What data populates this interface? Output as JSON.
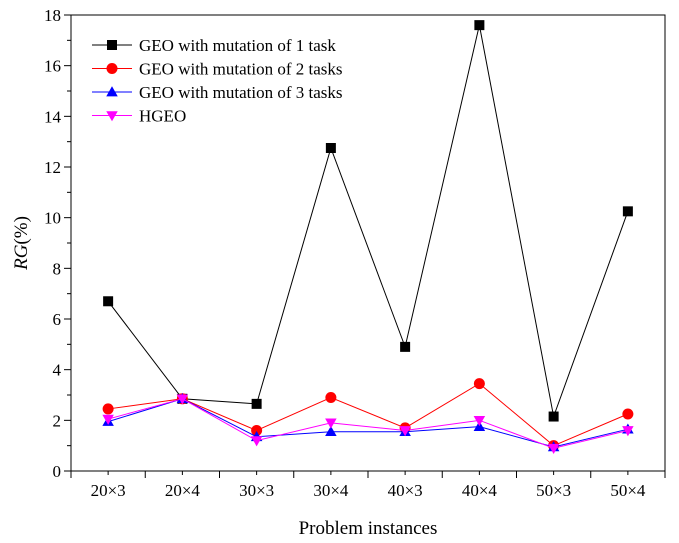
{
  "chart_data": {
    "type": "line",
    "title": "",
    "xlabel": "Problem instances",
    "ylabel_italic": "RG",
    "ylabel_rest": "(%)",
    "categories": [
      "20×3",
      "20×4",
      "30×3",
      "30×4",
      "40×3",
      "40×4",
      "50×3",
      "50×4"
    ],
    "ylim": [
      0,
      18
    ],
    "yticks": [
      0,
      2,
      4,
      6,
      8,
      10,
      12,
      14,
      16,
      18
    ],
    "grid": false,
    "legend_position": "top-left",
    "series": [
      {
        "name": "GEO with mutation of 1 task",
        "color": "#000000",
        "marker": "square",
        "values": [
          6.7,
          2.85,
          2.65,
          12.75,
          4.9,
          17.6,
          2.15,
          10.25
        ]
      },
      {
        "name": "GEO with mutation of 2 tasks",
        "color": "#ff0000",
        "marker": "circle",
        "values": [
          2.45,
          2.85,
          1.6,
          2.9,
          1.7,
          3.45,
          1.0,
          2.25
        ]
      },
      {
        "name": "GEO with mutation of 3 tasks",
        "color": "#0000ff",
        "marker": "triangle-up",
        "values": [
          1.95,
          2.85,
          1.35,
          1.55,
          1.55,
          1.75,
          0.95,
          1.65
        ]
      },
      {
        "name": "HGEO",
        "color": "#ff00ff",
        "marker": "triangle-down",
        "values": [
          2.05,
          2.85,
          1.2,
          1.9,
          1.6,
          2.0,
          0.9,
          1.6
        ]
      }
    ]
  }
}
